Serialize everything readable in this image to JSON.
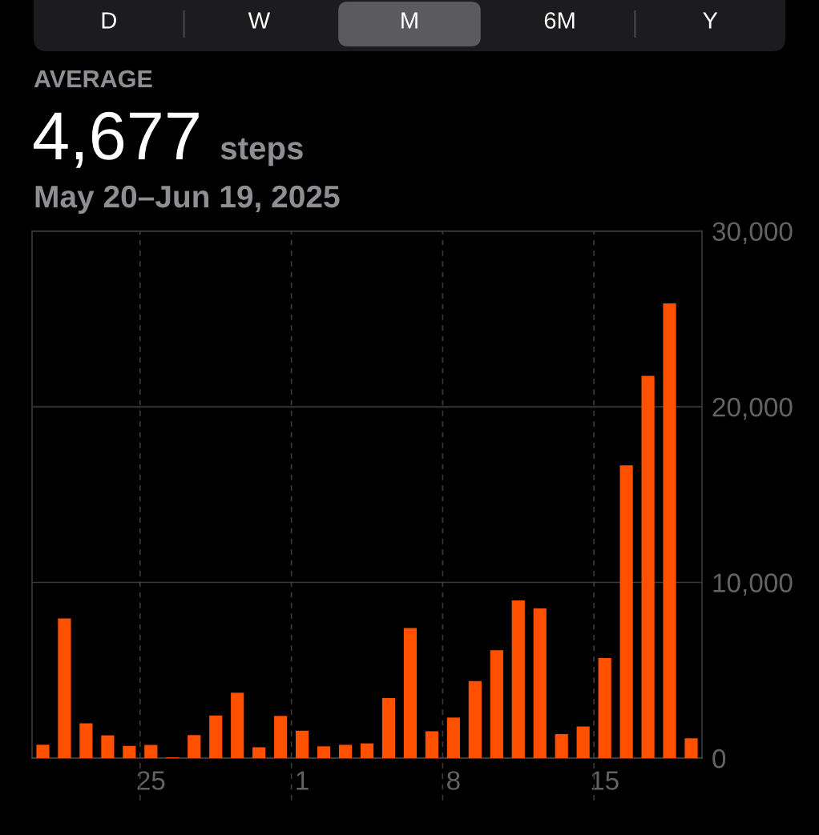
{
  "chart_data": {
    "type": "bar",
    "title": "AVERAGE",
    "subtitle": "May 20–Jun 19, 2025",
    "annotations": [
      "D",
      "W",
      "M",
      "6M",
      "Y",
      "4,677",
      "steps"
    ],
    "categories": [
      null,
      null,
      null,
      null,
      null,
      "25",
      null,
      null,
      null,
      null,
      null,
      null,
      "1",
      null,
      null,
      null,
      null,
      null,
      null,
      "8",
      null,
      null,
      null,
      null,
      null,
      null,
      "15",
      null,
      null,
      null,
      null
    ],
    "values": [
      760,
      7950,
      1980,
      1300,
      700,
      750,
      40,
      1310,
      2430,
      3720,
      620,
      2400,
      1560,
      670,
      760,
      840,
      3420,
      7400,
      1530,
      2310,
      4390,
      6140,
      8980,
      8520,
      1370,
      1800,
      5700,
      16660,
      21760,
      25880,
      1130
    ],
    "color": "#ff5000",
    "ylim": [
      0,
      30000
    ],
    "yticks": [
      0,
      {
        "value": 10000,
        "label": "10,000"
      },
      {
        "value": 20000,
        "label": "20,000"
      },
      {
        "value": 30000,
        "label": "30,000"
      }
    ],
    "grid": true
  }
}
